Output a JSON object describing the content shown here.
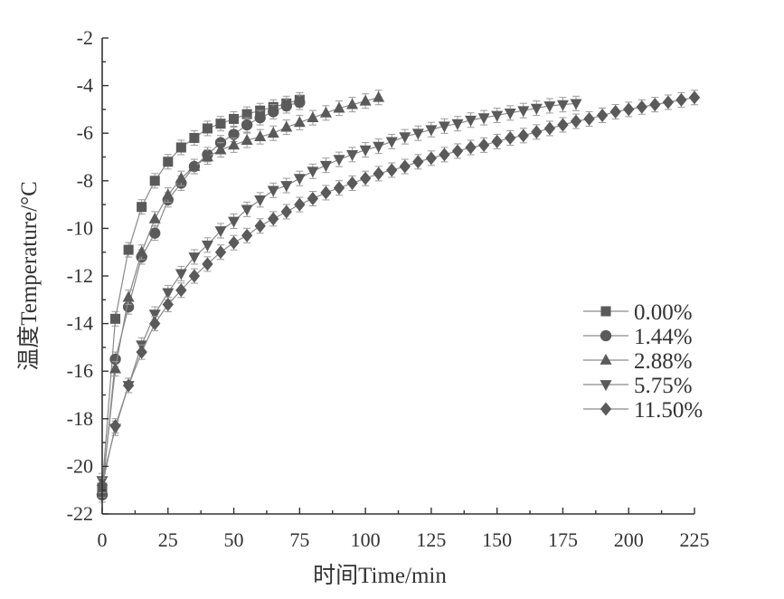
{
  "chart_data": {
    "type": "scatter",
    "title": "",
    "xlabel": "时间Time/min",
    "ylabel": "温度Temperature/°C",
    "xlim": [
      0,
      225
    ],
    "ylim": [
      -22,
      -2
    ],
    "xticks": [
      "0",
      "25",
      "50",
      "75",
      "100",
      "125",
      "150",
      "175",
      "200",
      "225"
    ],
    "yticks": [
      "-22",
      "-20",
      "-18",
      "-16",
      "-14",
      "-12",
      "-10",
      "-8",
      "-6",
      "-4",
      "-2"
    ],
    "legend_position": "right",
    "grid": false,
    "marker_color": "#5a5a5a",
    "line_color": "#8a8a8a",
    "series": [
      {
        "name": "0.00%",
        "marker": "square",
        "x": [
          0,
          5,
          10,
          15,
          20,
          25,
          30,
          35,
          40,
          45,
          50,
          55,
          60,
          65,
          70,
          75
        ],
        "y": [
          -20.9,
          -13.8,
          -10.9,
          -9.1,
          -8.0,
          -7.2,
          -6.6,
          -6.2,
          -5.8,
          -5.6,
          -5.4,
          -5.2,
          -5.05,
          -4.9,
          -4.75,
          -4.6
        ]
      },
      {
        "name": "1.44%",
        "marker": "circle",
        "x": [
          0,
          5,
          10,
          15,
          20,
          25,
          30,
          35,
          40,
          45,
          50,
          55,
          60,
          65,
          70,
          75
        ],
        "y": [
          -21.2,
          -15.5,
          -13.3,
          -11.2,
          -10.2,
          -8.8,
          -8.1,
          -7.4,
          -6.9,
          -6.4,
          -6.05,
          -5.65,
          -5.35,
          -5.1,
          -4.85,
          -4.7
        ]
      },
      {
        "name": "2.88%",
        "marker": "triangle-up",
        "x": [
          0,
          5,
          10,
          15,
          20,
          25,
          30,
          35,
          40,
          45,
          50,
          55,
          60,
          65,
          70,
          75,
          80,
          85,
          90,
          95,
          100,
          105
        ],
        "y": [
          -21.0,
          -15.9,
          -12.9,
          -11.0,
          -9.6,
          -8.6,
          -7.9,
          -7.4,
          -7.0,
          -6.7,
          -6.5,
          -6.3,
          -6.15,
          -6.0,
          -5.75,
          -5.55,
          -5.35,
          -5.15,
          -4.95,
          -4.8,
          -4.65,
          -4.5
        ]
      },
      {
        "name": "5.75%",
        "marker": "triangle-down",
        "x": [
          0,
          5,
          10,
          15,
          20,
          25,
          30,
          35,
          40,
          45,
          50,
          55,
          60,
          65,
          70,
          75,
          80,
          85,
          90,
          95,
          100,
          105,
          110,
          115,
          120,
          125,
          130,
          135,
          140,
          145,
          150,
          155,
          160,
          165,
          170,
          175,
          180
        ],
        "y": [
          -20.6,
          -18.4,
          -16.6,
          -14.9,
          -13.6,
          -12.7,
          -11.9,
          -11.2,
          -10.7,
          -10.1,
          -9.7,
          -9.2,
          -8.8,
          -8.4,
          -8.2,
          -7.9,
          -7.6,
          -7.35,
          -7.1,
          -6.9,
          -6.7,
          -6.55,
          -6.35,
          -6.15,
          -6.0,
          -5.85,
          -5.7,
          -5.6,
          -5.45,
          -5.35,
          -5.25,
          -5.15,
          -5.05,
          -4.95,
          -4.85,
          -4.8,
          -4.75
        ]
      },
      {
        "name": "11.50%",
        "marker": "diamond",
        "x": [
          0,
          5,
          10,
          15,
          20,
          25,
          30,
          35,
          40,
          45,
          50,
          55,
          60,
          65,
          70,
          75,
          80,
          85,
          90,
          95,
          100,
          105,
          110,
          115,
          120,
          125,
          130,
          135,
          140,
          145,
          150,
          155,
          160,
          165,
          170,
          175,
          180,
          185,
          190,
          195,
          200,
          205,
          210,
          215,
          220,
          225
        ],
        "y": [
          -20.8,
          -18.3,
          -16.6,
          -15.2,
          -14.0,
          -13.2,
          -12.6,
          -12.0,
          -11.5,
          -11.0,
          -10.6,
          -10.3,
          -9.9,
          -9.6,
          -9.3,
          -9.0,
          -8.75,
          -8.5,
          -8.3,
          -8.1,
          -7.9,
          -7.7,
          -7.55,
          -7.4,
          -7.2,
          -7.05,
          -6.9,
          -6.75,
          -6.6,
          -6.5,
          -6.35,
          -6.2,
          -6.1,
          -5.95,
          -5.8,
          -5.65,
          -5.5,
          -5.4,
          -5.25,
          -5.1,
          -5.0,
          -4.9,
          -4.8,
          -4.7,
          -4.6,
          -4.5
        ]
      }
    ]
  }
}
